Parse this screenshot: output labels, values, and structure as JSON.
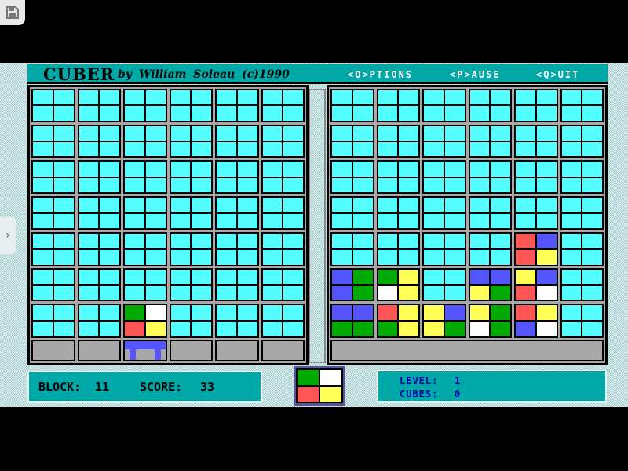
{
  "window": {
    "save_icon": "floppy-disk-icon",
    "side_tab_icon": "chevron-right-icon",
    "side_tab_glyph": "›"
  },
  "header": {
    "title": "CUBER",
    "byline": "by William Soleau (c)1990",
    "menu": [
      "<O>PTIONS",
      "<P>AUSE",
      "<Q>UIT"
    ]
  },
  "colors": {
    "C": "#55ffff",
    "G": "#00aa00",
    "W": "#ffffff",
    "R": "#ff5555",
    "Y": "#ffff55",
    "B": "#5555ff",
    "teal": "#00a8a8",
    "grey": "#a8a8a8"
  },
  "left_board": {
    "rows": [
      [
        "CCCC",
        "CCCC",
        "CCCC",
        "CCCC",
        "CCCC",
        "CCCC"
      ],
      [
        "CCCC",
        "CCCC",
        "CCCC",
        "CCCC",
        "CCCC",
        "CCCC"
      ],
      [
        "CCCC",
        "CCCC",
        "CCCC",
        "CCCC",
        "CCCC",
        "CCCC"
      ],
      [
        "CCCC",
        "CCCC",
        "CCCC",
        "CCCC",
        "CCCC",
        "CCCC"
      ],
      [
        "CCCC",
        "CCCC",
        "CCCC",
        "CCCC",
        "CCCC",
        "CCCC"
      ],
      [
        "CCCC",
        "CCCC",
        "CCCC",
        "CCCC",
        "CCCC",
        "CCCC"
      ],
      [
        "CCCC",
        "CCCC",
        "GWRY",
        "CCCC",
        "CCCC",
        "CCCC"
      ]
    ],
    "catcher_column": 3
  },
  "right_board": {
    "rows": [
      [
        "CCCC",
        "CCCC",
        "CCCC",
        "CCCC",
        "CCCC",
        "CCCC"
      ],
      [
        "CCCC",
        "CCCC",
        "CCCC",
        "CCCC",
        "CCCC",
        "CCCC"
      ],
      [
        "CCCC",
        "CCCC",
        "CCCC",
        "CCCC",
        "CCCC",
        "CCCC"
      ],
      [
        "CCCC",
        "CCCC",
        "CCCC",
        "CCCC",
        "CCCC",
        "CCCC"
      ],
      [
        "CCCC",
        "CCCC",
        "CCCC",
        "CCCC",
        "RBRY",
        "CCCC"
      ],
      [
        "BGBG",
        "GYWY",
        "CCCC",
        "BBYG",
        "YBRW",
        "CCCC"
      ],
      [
        "BBGG",
        "RYGY",
        "YBYG",
        "YGWG",
        "RYBW",
        "CCCC"
      ]
    ]
  },
  "status": {
    "block_label": "BLOCK:",
    "block": "11",
    "score_label": "SCORE:",
    "score": "33",
    "level_label": "LEVEL:",
    "level": "1",
    "cubes_label": "CUBES:",
    "cubes": "0"
  },
  "next_piece": "GWRY"
}
